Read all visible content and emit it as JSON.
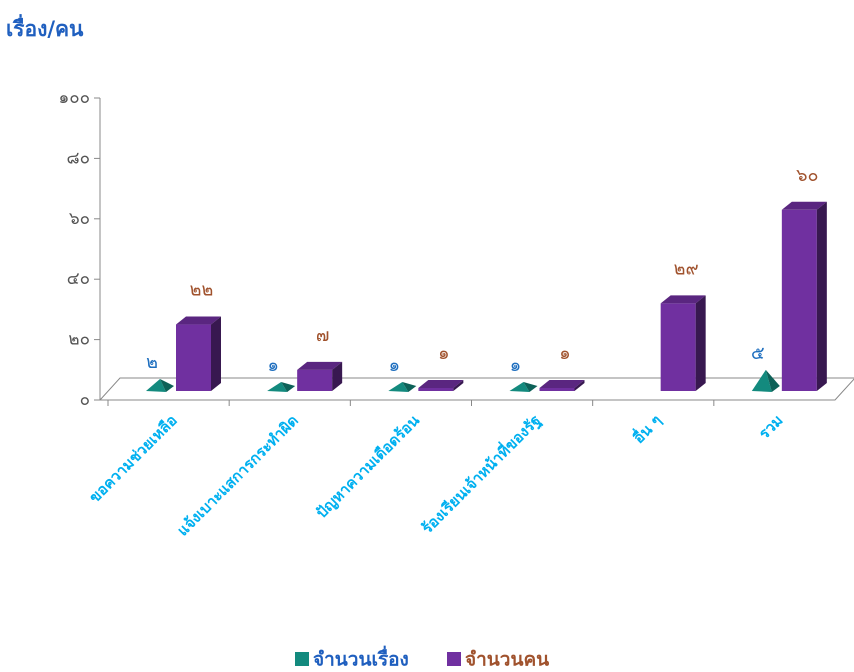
{
  "chart_data": {
    "type": "bar3d",
    "title": "เรื่อง/คน",
    "categories": [
      "ขอความช่วยเหลือ",
      "แจ้งเบาะแสการกระทำผิด",
      "ปัญหาความเดือดร้อน",
      "ร้องเรียนเจ้าหน้าที่ของรัฐ",
      "อื่น ๆ",
      "รวม"
    ],
    "series": [
      {
        "name": "จำนวนเรื่อง",
        "color": "#138a7e",
        "values": [
          2,
          1,
          1,
          1,
          null,
          5
        ],
        "value_labels": [
          "๒",
          "๑",
          "๑",
          "๑",
          null,
          "๕"
        ]
      },
      {
        "name": "จำนวนคน",
        "color": "#7030a0",
        "values": [
          22,
          7,
          1,
          1,
          29,
          60
        ],
        "value_labels": [
          "๒๒",
          "๗",
          "๑",
          "๑",
          "๒๙",
          "๖๐"
        ]
      }
    ],
    "ylim": [
      0,
      100
    ],
    "yticks": [
      {
        "value": 0,
        "label": "๐"
      },
      {
        "value": 20,
        "label": "๒๐"
      },
      {
        "value": 40,
        "label": "๔๐"
      },
      {
        "value": 60,
        "label": "๖๐"
      },
      {
        "value": 80,
        "label": "๘๐"
      },
      {
        "value": 100,
        "label": "๑๐๐"
      }
    ],
    "legend": "bottom"
  }
}
